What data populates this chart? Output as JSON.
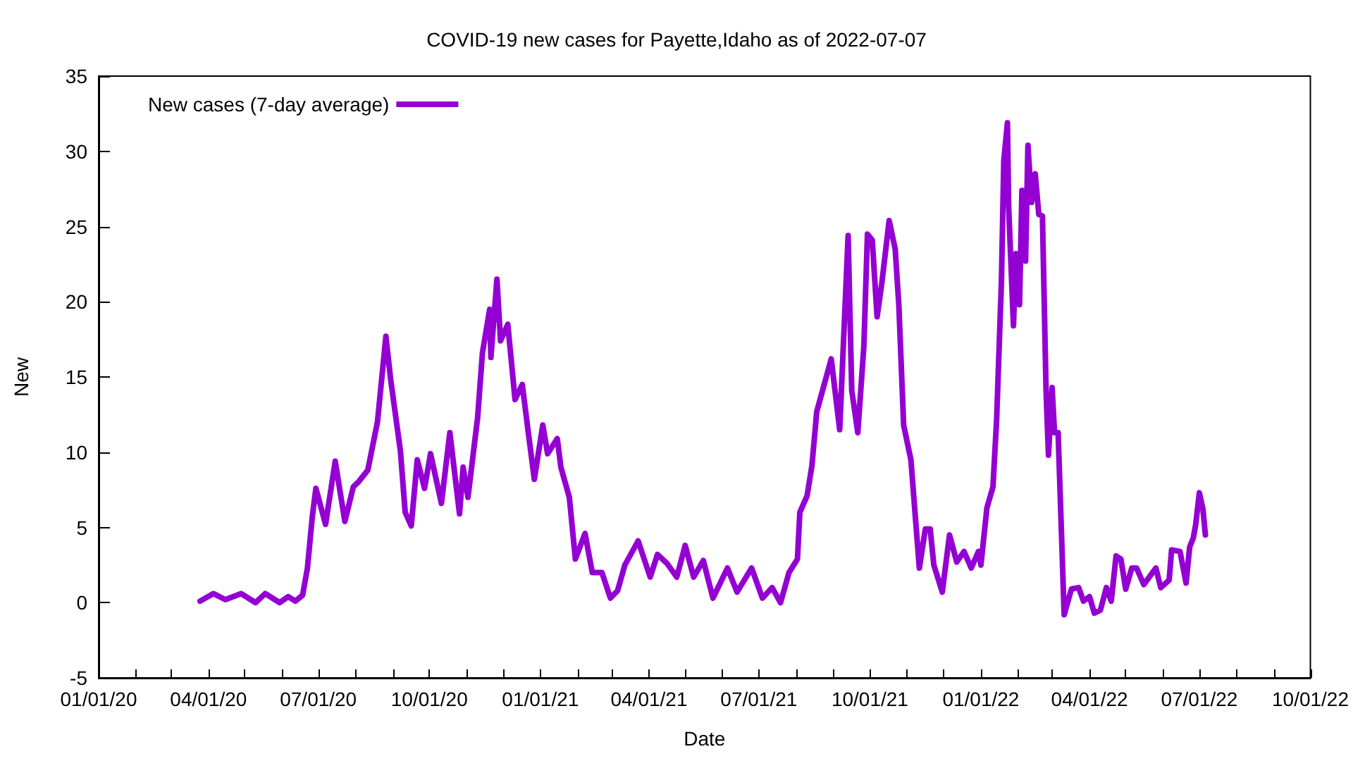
{
  "chart_data": {
    "type": "line",
    "title": "COVID-19 new cases for Payette,Idaho as of 2022-07-07",
    "xlabel": "Date",
    "ylabel": "New",
    "x": [
      "2020-03-25",
      "2020-04-05",
      "2020-04-15",
      "2020-04-28",
      "2020-05-10",
      "2020-05-18",
      "2020-05-30",
      "2020-06-06",
      "2020-06-12",
      "2020-06-18",
      "2020-06-22",
      "2020-06-26",
      "2020-06-29",
      "2020-07-07",
      "2020-07-15",
      "2020-07-23",
      "2020-07-30",
      "2020-08-03",
      "2020-08-11",
      "2020-08-19",
      "2020-08-26",
      "2020-08-30",
      "2020-09-07",
      "2020-09-11",
      "2020-09-16",
      "2020-09-21",
      "2020-09-27",
      "2020-10-02",
      "2020-10-11",
      "2020-10-18",
      "2020-10-26",
      "2020-10-29",
      "2020-11-02",
      "2020-11-10",
      "2020-11-14",
      "2020-11-20",
      "2020-11-21",
      "2020-11-26",
      "2020-11-29",
      "2020-12-05",
      "2020-12-11",
      "2020-12-17",
      "2020-12-22",
      "2020-12-27",
      "2021-01-03",
      "2021-01-07",
      "2021-01-15",
      "2021-01-18",
      "2021-01-25",
      "2021-01-30",
      "2021-02-07",
      "2021-02-13",
      "2021-02-21",
      "2021-02-28",
      "2021-03-06",
      "2021-03-12",
      "2021-03-23",
      "2021-04-02",
      "2021-04-08",
      "2021-04-16",
      "2021-04-24",
      "2021-05-01",
      "2021-05-08",
      "2021-05-16",
      "2021-05-24",
      "2021-06-05",
      "2021-06-13",
      "2021-06-25",
      "2021-07-04",
      "2021-07-12",
      "2021-07-19",
      "2021-07-26",
      "2021-08-02",
      "2021-08-04",
      "2021-08-10",
      "2021-08-14",
      "2021-08-18",
      "2021-08-30",
      "2021-09-06",
      "2021-09-13",
      "2021-09-16",
      "2021-09-21",
      "2021-09-26",
      "2021-09-29",
      "2021-10-03",
      "2021-10-07",
      "2021-10-11",
      "2021-10-17",
      "2021-10-22",
      "2021-10-25",
      "2021-10-29",
      "2021-11-04",
      "2021-11-11",
      "2021-11-16",
      "2021-11-20",
      "2021-11-23",
      "2021-11-30",
      "2021-12-06",
      "2021-12-12",
      "2021-12-18",
      "2021-12-24",
      "2021-12-30",
      "2022-01-01",
      "2022-01-06",
      "2022-01-11",
      "2022-01-14",
      "2022-01-18",
      "2022-01-20",
      "2022-01-23",
      "2022-01-24",
      "2022-01-28",
      "2022-01-30",
      "2022-02-02",
      "2022-02-04",
      "2022-02-07",
      "2022-02-09",
      "2022-02-12",
      "2022-02-15",
      "2022-02-18",
      "2022-02-21",
      "2022-02-24",
      "2022-02-26",
      "2022-03-01",
      "2022-03-03",
      "2022-03-06",
      "2022-03-11",
      "2022-03-17",
      "2022-03-23",
      "2022-03-27",
      "2022-04-01",
      "2022-04-05",
      "2022-04-10",
      "2022-04-15",
      "2022-04-19",
      "2022-04-23",
      "2022-04-27",
      "2022-05-01",
      "2022-05-06",
      "2022-05-10",
      "2022-05-16",
      "2022-05-26",
      "2022-05-30",
      "2022-06-06",
      "2022-06-08",
      "2022-06-15",
      "2022-06-20",
      "2022-06-23",
      "2022-06-26",
      "2022-06-28",
      "2022-07-01",
      "2022-07-04",
      "2022-07-06"
    ],
    "series": [
      {
        "name": "New cases (7-day average)",
        "color": "#9400d3",
        "values": [
          0.1,
          0.6,
          0.2,
          0.6,
          0.0,
          0.6,
          0.0,
          0.4,
          0.1,
          0.5,
          2.3,
          5.7,
          7.6,
          5.2,
          9.4,
          5.4,
          7.7,
          8.0,
          8.8,
          12.0,
          17.7,
          14.8,
          10.1,
          6.0,
          5.1,
          9.5,
          7.6,
          9.9,
          6.6,
          11.3,
          5.9,
          9.0,
          7.0,
          12.3,
          16.6,
          19.5,
          16.3,
          21.5,
          17.4,
          18.5,
          13.5,
          14.5,
          11.3,
          8.2,
          11.8,
          9.9,
          10.9,
          9.0,
          7.0,
          2.9,
          4.6,
          2.0,
          2.0,
          0.3,
          0.8,
          2.5,
          4.1,
          1.7,
          3.2,
          2.6,
          1.7,
          3.8,
          1.7,
          2.8,
          0.3,
          2.3,
          0.7,
          2.3,
          0.3,
          1.0,
          0.0,
          2.0,
          2.9,
          6.0,
          7.1,
          9.1,
          12.7,
          16.2,
          11.5,
          24.4,
          14.1,
          11.3,
          17.0,
          24.5,
          24.1,
          19.0,
          21.3,
          25.4,
          23.5,
          19.8,
          11.8,
          9.5,
          2.3,
          4.9,
          4.9,
          2.5,
          0.7,
          4.5,
          2.7,
          3.4,
          2.3,
          3.4,
          2.5,
          6.3,
          7.7,
          12.1,
          21.3,
          29.4,
          31.9,
          26.3,
          18.4,
          23.2,
          19.8,
          27.4,
          22.7,
          30.4,
          26.6,
          28.5,
          25.8,
          25.7,
          14.1,
          9.8,
          14.3,
          11.3,
          11.3,
          -0.8,
          0.9,
          1.0,
          0.1,
          0.4,
          -0.7,
          -0.5,
          1.0,
          0.1,
          3.1,
          2.9,
          0.9,
          2.3,
          2.3,
          1.2,
          2.3,
          1.0,
          1.5,
          3.5,
          3.4,
          1.3,
          3.7,
          4.3,
          5.2,
          7.3,
          6.2,
          4.5
        ]
      }
    ],
    "xlim": [
      "2020-01-01",
      "2022-10-01"
    ],
    "xticks": [
      {
        "value": "2020-01-01",
        "label": "01/01/20"
      },
      {
        "value": "2020-02-01",
        "label": null
      },
      {
        "value": "2020-03-01",
        "label": null
      },
      {
        "value": "2020-04-01",
        "label": "04/01/20"
      },
      {
        "value": "2020-05-01",
        "label": null
      },
      {
        "value": "2020-06-01",
        "label": null
      },
      {
        "value": "2020-07-01",
        "label": "07/01/20"
      },
      {
        "value": "2020-08-01",
        "label": null
      },
      {
        "value": "2020-09-01",
        "label": null
      },
      {
        "value": "2020-10-01",
        "label": "10/01/20"
      },
      {
        "value": "2020-11-01",
        "label": null
      },
      {
        "value": "2020-12-01",
        "label": null
      },
      {
        "value": "2021-01-01",
        "label": "01/01/21"
      },
      {
        "value": "2021-02-01",
        "label": null
      },
      {
        "value": "2021-03-01",
        "label": null
      },
      {
        "value": "2021-04-01",
        "label": "04/01/21"
      },
      {
        "value": "2021-05-01",
        "label": null
      },
      {
        "value": "2021-06-01",
        "label": null
      },
      {
        "value": "2021-07-01",
        "label": "07/01/21"
      },
      {
        "value": "2021-08-01",
        "label": null
      },
      {
        "value": "2021-09-01",
        "label": null
      },
      {
        "value": "2021-10-01",
        "label": "10/01/21"
      },
      {
        "value": "2021-11-01",
        "label": null
      },
      {
        "value": "2021-12-01",
        "label": null
      },
      {
        "value": "2022-01-01",
        "label": "01/01/22"
      },
      {
        "value": "2022-02-01",
        "label": null
      },
      {
        "value": "2022-03-01",
        "label": null
      },
      {
        "value": "2022-04-01",
        "label": "04/01/22"
      },
      {
        "value": "2022-05-01",
        "label": null
      },
      {
        "value": "2022-06-01",
        "label": null
      },
      {
        "value": "2022-07-01",
        "label": "07/01/22"
      },
      {
        "value": "2022-08-01",
        "label": null
      },
      {
        "value": "2022-09-01",
        "label": null
      },
      {
        "value": "2022-10-01",
        "label": "10/01/22"
      }
    ],
    "ylim": [
      -5,
      35
    ],
    "yticks": [
      -5,
      0,
      5,
      10,
      15,
      20,
      25,
      30,
      35
    ],
    "grid": false,
    "legend": "top left",
    "marker": "none",
    "line_style": "solid"
  }
}
